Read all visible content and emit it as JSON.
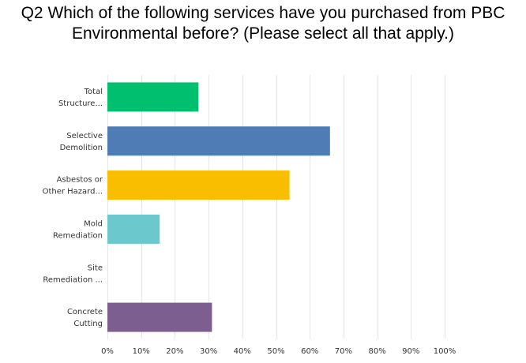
{
  "question": {
    "line1": "Q2 Which of the following services have you purchased from PBC",
    "line2": "Environmental before? (Please select all that apply.)"
  },
  "chart_data": {
    "type": "bar",
    "orientation": "horizontal",
    "title": "Q2 Which of the following services have you purchased from PBC Environmental before? (Please select all that apply.)",
    "xlabel": "",
    "ylabel": "",
    "xlim": [
      0,
      100
    ],
    "grid": true,
    "ticks": [
      "0%",
      "10%",
      "20%",
      "30%",
      "40%",
      "50%",
      "60%",
      "70%",
      "80%",
      "90%",
      "100%"
    ],
    "categories": [
      [
        "Total",
        "Structure..."
      ],
      [
        "Selective",
        "Demolition"
      ],
      [
        "Asbestos or",
        "Other Hazard..."
      ],
      [
        "Mold",
        "Remediation"
      ],
      [
        "Site",
        "Remediation ..."
      ],
      [
        "Concrete",
        "Cutting"
      ]
    ],
    "values": [
      27,
      66,
      54,
      15.5,
      0,
      31
    ],
    "colors": [
      "#00bf6f",
      "#507cb6",
      "#f9be00",
      "#6bc8cd",
      "#a4a4a4",
      "#7d5e90"
    ]
  }
}
